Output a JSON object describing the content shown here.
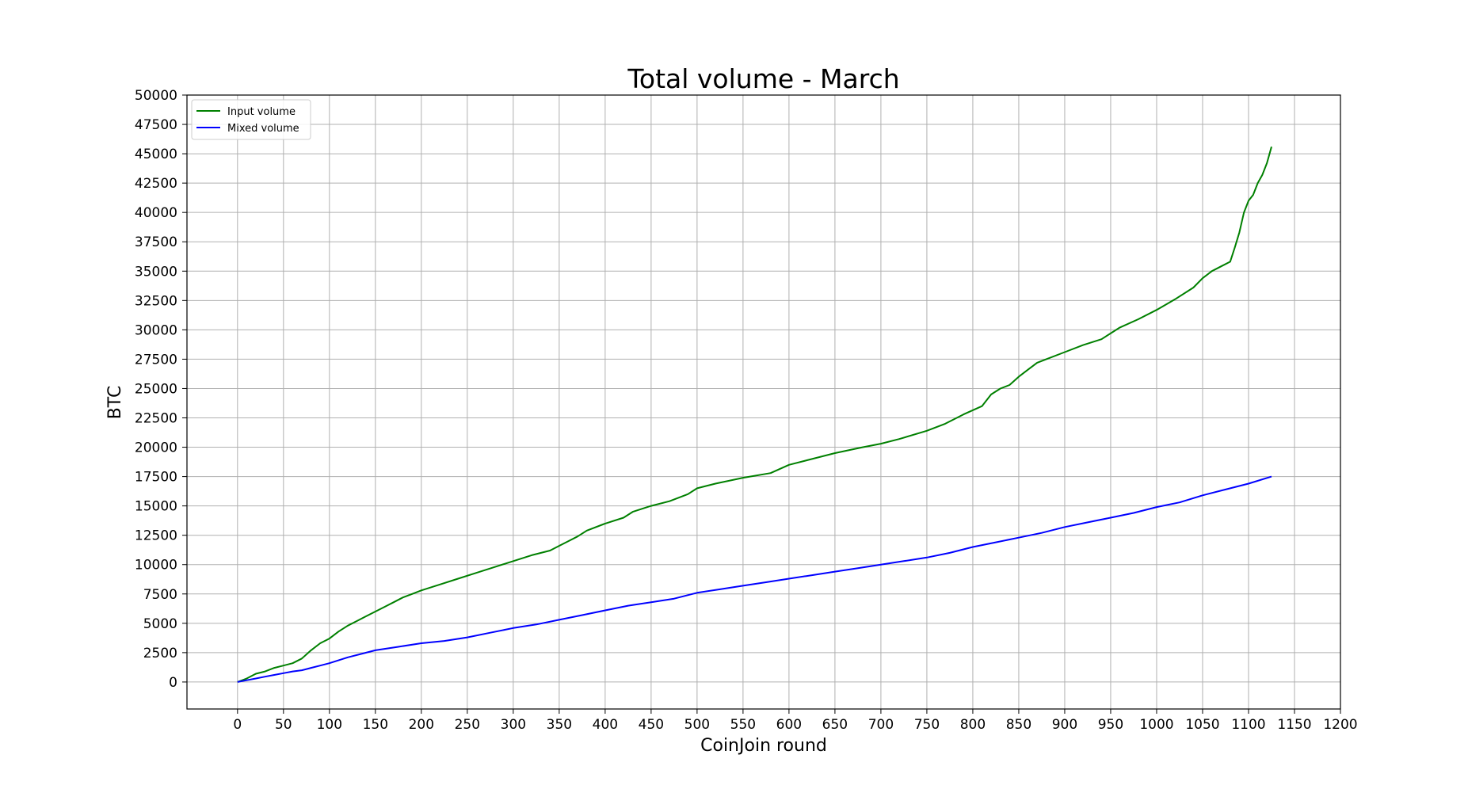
{
  "chart_data": {
    "type": "line",
    "title": "Total volume - March",
    "xlabel": "CoinJoin round",
    "ylabel": "BTC",
    "xlim": [
      -55,
      1200
    ],
    "ylim": [
      -2300,
      50000
    ],
    "grid": true,
    "legend_position": "top-left",
    "x_ticks": [
      0,
      50,
      100,
      150,
      200,
      250,
      300,
      350,
      400,
      450,
      500,
      550,
      600,
      650,
      700,
      750,
      800,
      850,
      900,
      950,
      1000,
      1050,
      1100,
      1150,
      1200
    ],
    "y_ticks": [
      0,
      2500,
      5000,
      7500,
      10000,
      12500,
      15000,
      17500,
      20000,
      22500,
      25000,
      27500,
      30000,
      32500,
      35000,
      37500,
      40000,
      42500,
      45000,
      47500,
      50000
    ],
    "series": [
      {
        "name": "Input volume",
        "color": "#008000",
        "points": [
          [
            0,
            0
          ],
          [
            10,
            300
          ],
          [
            20,
            700
          ],
          [
            30,
            900
          ],
          [
            40,
            1200
          ],
          [
            50,
            1400
          ],
          [
            60,
            1600
          ],
          [
            70,
            2000
          ],
          [
            80,
            2700
          ],
          [
            90,
            3300
          ],
          [
            100,
            3700
          ],
          [
            110,
            4300
          ],
          [
            120,
            4800
          ],
          [
            130,
            5200
          ],
          [
            140,
            5600
          ],
          [
            150,
            6000
          ],
          [
            160,
            6400
          ],
          [
            170,
            6800
          ],
          [
            180,
            7200
          ],
          [
            190,
            7500
          ],
          [
            200,
            7800
          ],
          [
            220,
            8300
          ],
          [
            240,
            8800
          ],
          [
            260,
            9300
          ],
          [
            280,
            9800
          ],
          [
            300,
            10300
          ],
          [
            320,
            10800
          ],
          [
            340,
            11200
          ],
          [
            350,
            11600
          ],
          [
            360,
            12000
          ],
          [
            370,
            12400
          ],
          [
            380,
            12900
          ],
          [
            400,
            13500
          ],
          [
            420,
            14000
          ],
          [
            430,
            14500
          ],
          [
            450,
            15000
          ],
          [
            470,
            15400
          ],
          [
            490,
            16000
          ],
          [
            500,
            16500
          ],
          [
            520,
            16900
          ],
          [
            550,
            17400
          ],
          [
            580,
            17800
          ],
          [
            600,
            18500
          ],
          [
            620,
            18900
          ],
          [
            650,
            19500
          ],
          [
            680,
            20000
          ],
          [
            700,
            20300
          ],
          [
            720,
            20700
          ],
          [
            750,
            21400
          ],
          [
            770,
            22000
          ],
          [
            790,
            22800
          ],
          [
            810,
            23500
          ],
          [
            820,
            24500
          ],
          [
            830,
            25000
          ],
          [
            840,
            25300
          ],
          [
            850,
            26000
          ],
          [
            860,
            26600
          ],
          [
            870,
            27200
          ],
          [
            880,
            27500
          ],
          [
            900,
            28100
          ],
          [
            920,
            28700
          ],
          [
            940,
            29200
          ],
          [
            960,
            30200
          ],
          [
            980,
            30900
          ],
          [
            1000,
            31700
          ],
          [
            1020,
            32600
          ],
          [
            1040,
            33600
          ],
          [
            1050,
            34400
          ],
          [
            1060,
            35000
          ],
          [
            1070,
            35400
          ],
          [
            1080,
            35800
          ],
          [
            1085,
            37000
          ],
          [
            1090,
            38300
          ],
          [
            1095,
            40000
          ],
          [
            1100,
            41000
          ],
          [
            1105,
            41500
          ],
          [
            1110,
            42500
          ],
          [
            1115,
            43200
          ],
          [
            1120,
            44200
          ],
          [
            1125,
            45600
          ]
        ]
      },
      {
        "name": "Mixed volume",
        "color": "#0000ff",
        "points": [
          [
            0,
            0
          ],
          [
            10,
            150
          ],
          [
            20,
            300
          ],
          [
            30,
            450
          ],
          [
            40,
            600
          ],
          [
            50,
            750
          ],
          [
            60,
            900
          ],
          [
            70,
            1000
          ],
          [
            80,
            1200
          ],
          [
            90,
            1400
          ],
          [
            100,
            1600
          ],
          [
            120,
            2100
          ],
          [
            140,
            2500
          ],
          [
            150,
            2700
          ],
          [
            175,
            3000
          ],
          [
            200,
            3300
          ],
          [
            225,
            3500
          ],
          [
            250,
            3800
          ],
          [
            275,
            4200
          ],
          [
            300,
            4600
          ],
          [
            325,
            4900
          ],
          [
            350,
            5300
          ],
          [
            375,
            5700
          ],
          [
            400,
            6100
          ],
          [
            425,
            6500
          ],
          [
            450,
            6800
          ],
          [
            475,
            7100
          ],
          [
            500,
            7600
          ],
          [
            525,
            7900
          ],
          [
            550,
            8200
          ],
          [
            575,
            8500
          ],
          [
            600,
            8800
          ],
          [
            625,
            9100
          ],
          [
            650,
            9400
          ],
          [
            675,
            9700
          ],
          [
            700,
            10000
          ],
          [
            725,
            10300
          ],
          [
            750,
            10600
          ],
          [
            775,
            11000
          ],
          [
            800,
            11500
          ],
          [
            825,
            11900
          ],
          [
            850,
            12300
          ],
          [
            875,
            12700
          ],
          [
            900,
            13200
          ],
          [
            925,
            13600
          ],
          [
            950,
            14000
          ],
          [
            975,
            14400
          ],
          [
            1000,
            14900
          ],
          [
            1025,
            15300
          ],
          [
            1050,
            15900
          ],
          [
            1075,
            16400
          ],
          [
            1100,
            16900
          ],
          [
            1125,
            17500
          ]
        ]
      }
    ]
  }
}
